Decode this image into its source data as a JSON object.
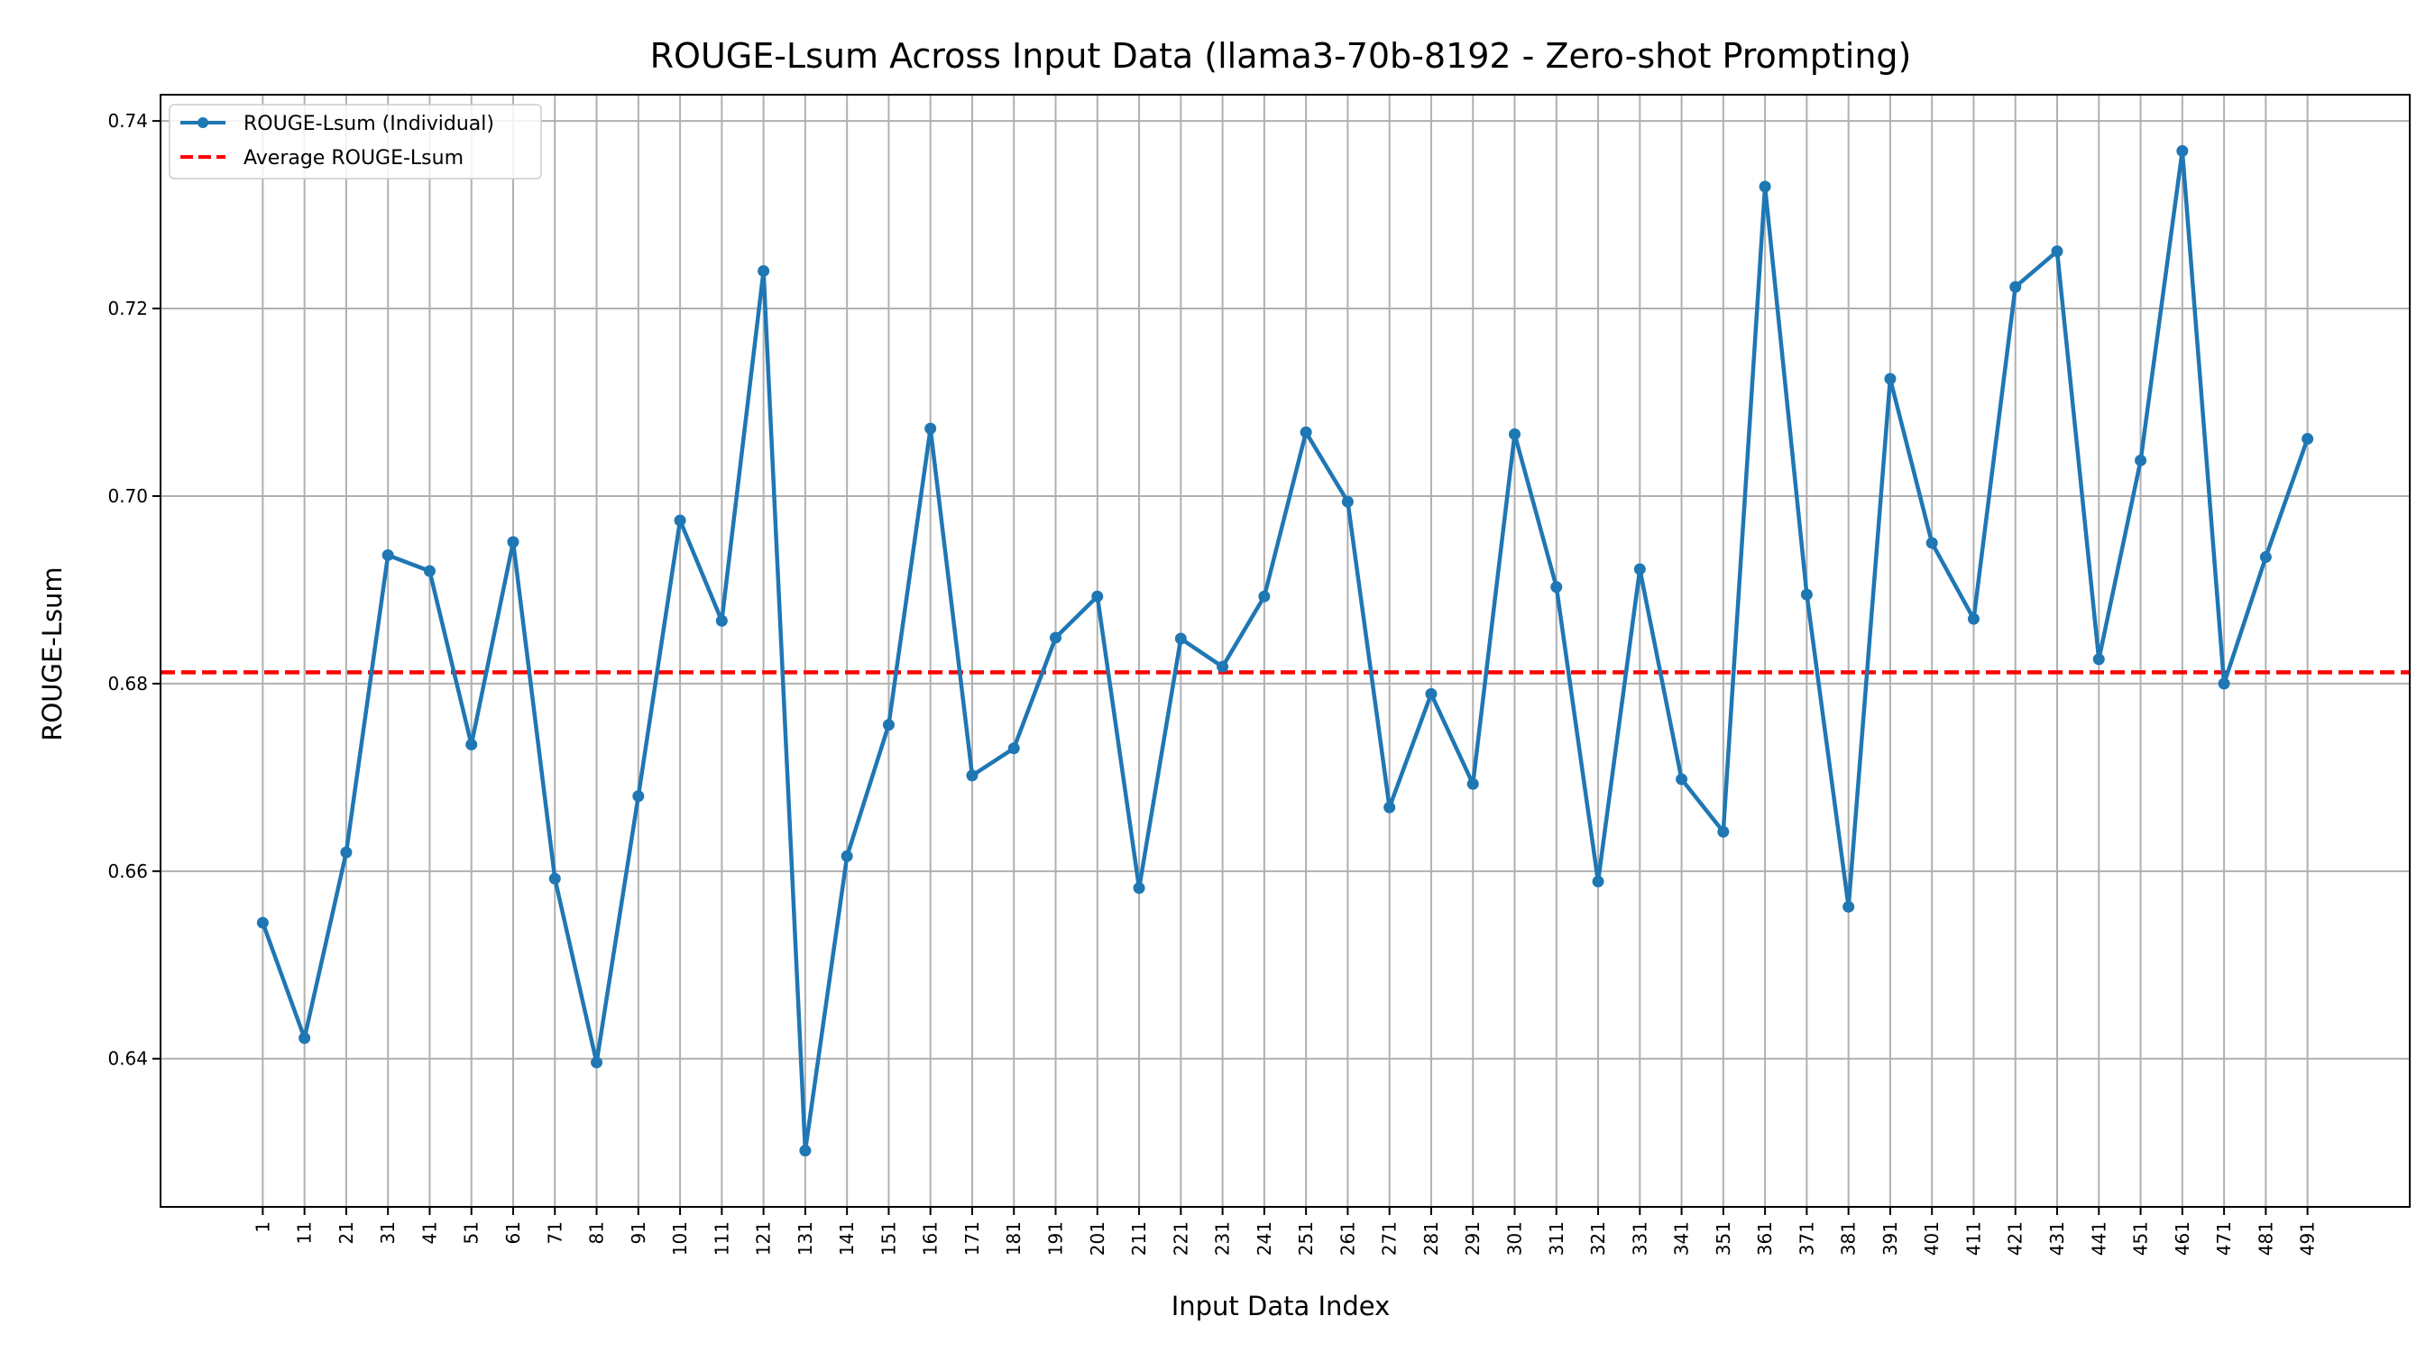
{
  "chart_data": {
    "type": "line",
    "title": "ROUGE-Lsum Across Input Data (llama3-70b-8192 - Zero-shot Prompting)",
    "xlabel": "Input Data Index",
    "ylabel": "ROUGE-Lsum",
    "x": [
      1,
      11,
      21,
      31,
      41,
      51,
      61,
      71,
      81,
      91,
      101,
      111,
      121,
      131,
      141,
      151,
      161,
      171,
      181,
      191,
      201,
      211,
      221,
      231,
      241,
      251,
      261,
      271,
      281,
      291,
      301,
      311,
      321,
      331,
      341,
      351,
      361,
      371,
      381,
      391,
      401,
      411,
      421,
      431,
      441,
      451,
      461,
      471,
      481,
      491
    ],
    "x_tick_labels": [
      "1",
      "11",
      "21",
      "31",
      "41",
      "51",
      "61",
      "71",
      "81",
      "91",
      "101",
      "111",
      "121",
      "131",
      "141",
      "151",
      "161",
      "171",
      "181",
      "191",
      "201",
      "211",
      "221",
      "231",
      "241",
      "251",
      "261",
      "271",
      "281",
      "291",
      "301",
      "311",
      "321",
      "331",
      "341",
      "351",
      "361",
      "371",
      "381",
      "391",
      "401",
      "411",
      "421",
      "431",
      "441",
      "451",
      "461",
      "471",
      "481",
      "491"
    ],
    "series": [
      {
        "name": "ROUGE-Lsum (Individual)",
        "color": "#1f77b4",
        "style": "solid-with-markers",
        "values": [
          0.6545,
          0.6422,
          0.662,
          0.6937,
          0.692,
          0.6735,
          0.6951,
          0.6592,
          0.6396,
          0.668,
          0.6974,
          0.6867,
          0.724,
          0.6302,
          0.6616,
          0.6756,
          0.7072,
          0.6702,
          0.6731,
          0.6849,
          0.6893,
          0.6582,
          0.6848,
          0.6818,
          0.6893,
          0.7068,
          0.6994,
          0.6668,
          0.6789,
          0.6693,
          0.7066,
          0.6903,
          0.6589,
          0.6922,
          0.6698,
          0.6642,
          0.733,
          0.6895,
          0.6562,
          0.7125,
          0.695,
          0.6869,
          0.7223,
          0.7261,
          0.6826,
          0.7038,
          0.7368,
          0.68,
          0.6935,
          0.7061
        ]
      },
      {
        "name": "Average ROUGE-Lsum",
        "color": "#ff0000",
        "style": "dashed",
        "value": 0.6812
      }
    ],
    "y_ticks": [
      "0.64",
      "0.66",
      "0.68",
      "0.70",
      "0.72",
      "0.74"
    ],
    "ylim": [
      0.6242,
      0.7428
    ],
    "xlim": [
      -23.5,
      515.5
    ],
    "grid": true,
    "legend_position": "upper-left"
  }
}
